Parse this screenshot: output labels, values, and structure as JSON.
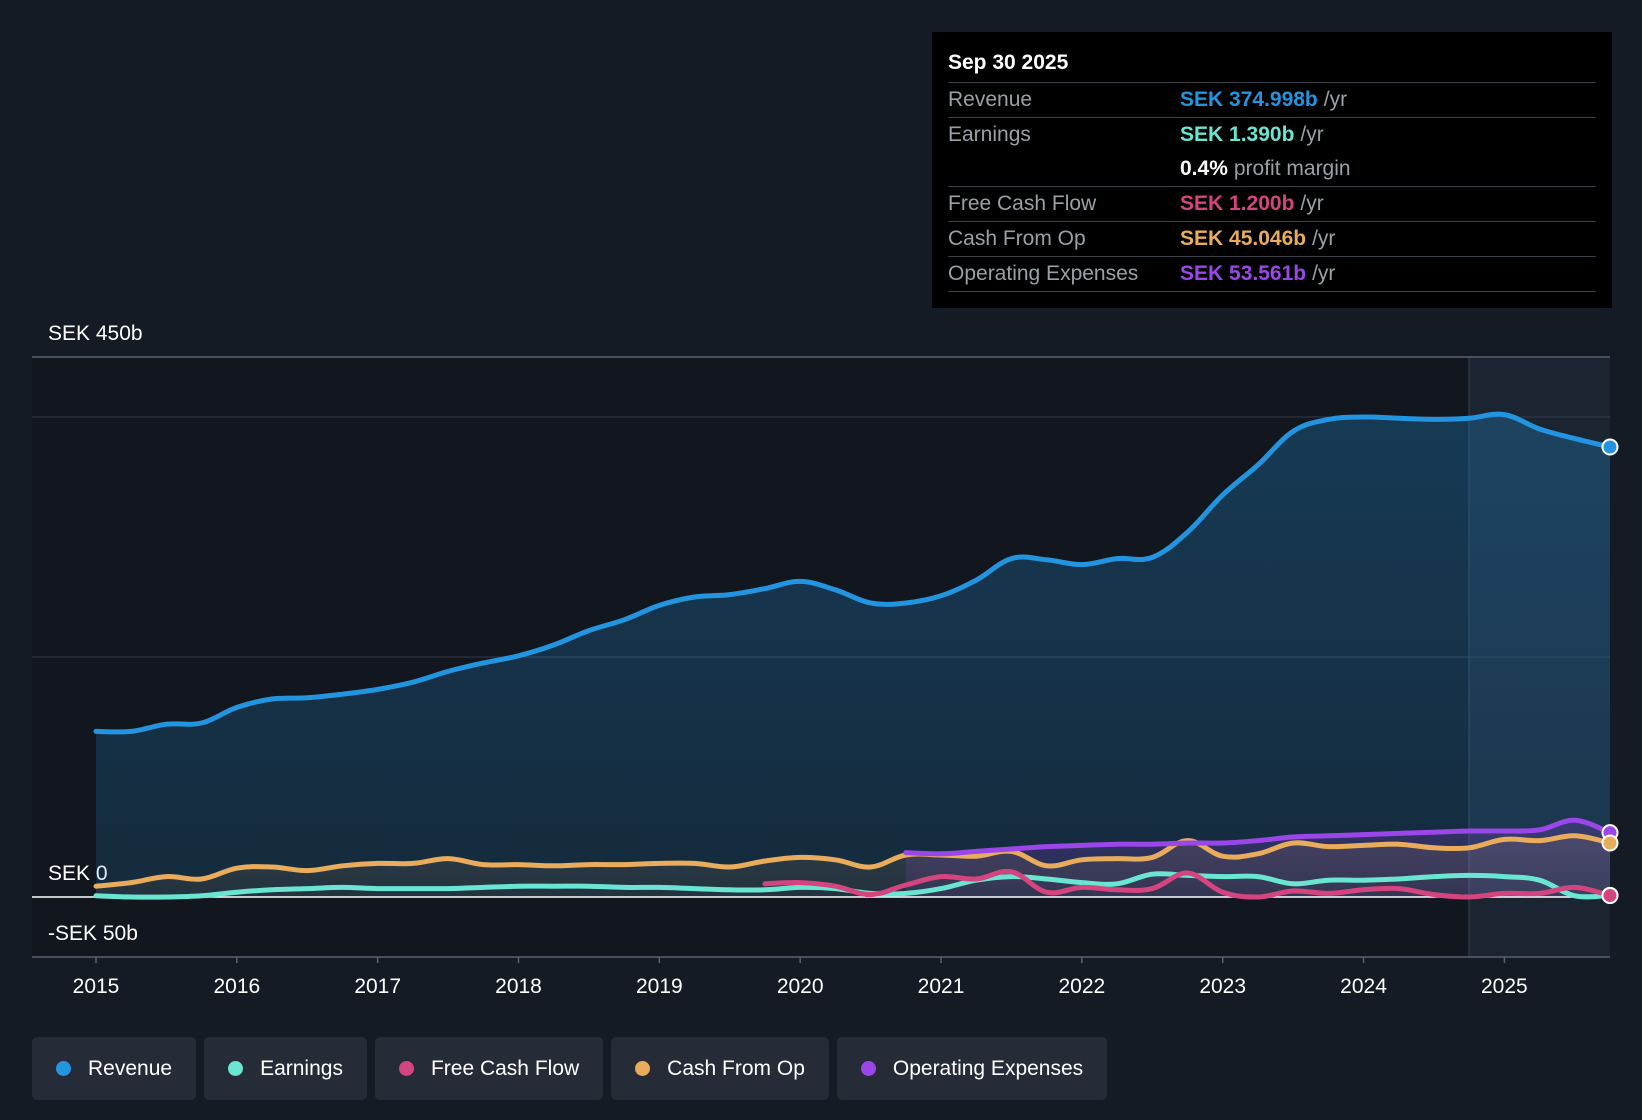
{
  "tooltip": {
    "date": "Sep 30 2025",
    "rows": [
      {
        "label": "Revenue",
        "value": "SEK 374.998b",
        "unit": "/yr",
        "color": "#2394df"
      },
      {
        "label": "Earnings",
        "value": "SEK 1.390b",
        "unit": "/yr",
        "color": "#6ae5d2"
      },
      {
        "label": "",
        "value": "0.4%",
        "unit": "profit margin",
        "color": "#ffffff"
      },
      {
        "label": "Free Cash Flow",
        "value": "SEK 1.200b",
        "unit": "/yr",
        "color": "#d4457f"
      },
      {
        "label": "Cash From Op",
        "value": "SEK 45.046b",
        "unit": "/yr",
        "color": "#e8ac5c"
      },
      {
        "label": "Operating Expenses",
        "value": "SEK 53.561b",
        "unit": "/yr",
        "color": "#9b46e8"
      }
    ]
  },
  "legend": [
    {
      "label": "Revenue",
      "color": "#2394df"
    },
    {
      "label": "Earnings",
      "color": "#6ae5d2"
    },
    {
      "label": "Free Cash Flow",
      "color": "#d4457f"
    },
    {
      "label": "Cash From Op",
      "color": "#e8ac5c"
    },
    {
      "label": "Operating Expenses",
      "color": "#9b46e8"
    }
  ],
  "chart_data": {
    "type": "area",
    "title": "",
    "xlabel": "",
    "ylabel": "",
    "y_top_label": "SEK 450b",
    "y_zero_label": "SEK 0",
    "y_bottom_label": "-SEK 50b",
    "ylim": [
      -50,
      450
    ],
    "xlim": [
      2015,
      2025.75
    ],
    "x_ticks": [
      "2015",
      "2016",
      "2017",
      "2018",
      "2019",
      "2020",
      "2021",
      "2022",
      "2023",
      "2024",
      "2025"
    ],
    "highlight_from": 2024.75,
    "series": [
      {
        "name": "Revenue",
        "color": "#2394df",
        "fill": true,
        "points": [
          [
            2015,
            138
          ],
          [
            2015.25,
            138
          ],
          [
            2015.5,
            144
          ],
          [
            2015.75,
            145
          ],
          [
            2016,
            158
          ],
          [
            2016.25,
            165
          ],
          [
            2016.5,
            166
          ],
          [
            2016.75,
            169
          ],
          [
            2017,
            173
          ],
          [
            2017.25,
            179
          ],
          [
            2017.5,
            188
          ],
          [
            2017.75,
            195
          ],
          [
            2018,
            201
          ],
          [
            2018.25,
            210
          ],
          [
            2018.5,
            222
          ],
          [
            2018.75,
            231
          ],
          [
            2019,
            243
          ],
          [
            2019.25,
            250
          ],
          [
            2019.5,
            252
          ],
          [
            2019.75,
            257
          ],
          [
            2020,
            263
          ],
          [
            2020.25,
            256
          ],
          [
            2020.5,
            245
          ],
          [
            2020.75,
            245
          ],
          [
            2021,
            251
          ],
          [
            2021.25,
            264
          ],
          [
            2021.5,
            282
          ],
          [
            2021.75,
            281
          ],
          [
            2022,
            277
          ],
          [
            2022.25,
            282
          ],
          [
            2022.5,
            283
          ],
          [
            2022.75,
            304
          ],
          [
            2023,
            335
          ],
          [
            2023.25,
            360
          ],
          [
            2023.5,
            388
          ],
          [
            2023.75,
            398
          ],
          [
            2024,
            400
          ],
          [
            2024.25,
            399
          ],
          [
            2024.5,
            398
          ],
          [
            2024.75,
            399
          ],
          [
            2025,
            402
          ],
          [
            2025.25,
            390
          ],
          [
            2025.5,
            382
          ],
          [
            2025.75,
            375
          ]
        ]
      },
      {
        "name": "Cash From Op",
        "color": "#e8ac5c",
        "fill": false,
        "points": [
          [
            2015,
            9
          ],
          [
            2015.25,
            12
          ],
          [
            2015.5,
            17
          ],
          [
            2015.75,
            15
          ],
          [
            2016,
            24
          ],
          [
            2016.25,
            25
          ],
          [
            2016.5,
            22
          ],
          [
            2016.75,
            26
          ],
          [
            2017,
            28
          ],
          [
            2017.25,
            28
          ],
          [
            2017.5,
            32
          ],
          [
            2017.75,
            27
          ],
          [
            2018,
            27
          ],
          [
            2018.25,
            26
          ],
          [
            2018.5,
            27
          ],
          [
            2018.75,
            27
          ],
          [
            2019,
            28
          ],
          [
            2019.25,
            28
          ],
          [
            2019.5,
            25
          ],
          [
            2019.75,
            30
          ],
          [
            2020,
            33
          ],
          [
            2020.25,
            31
          ],
          [
            2020.5,
            25
          ],
          [
            2020.75,
            35
          ],
          [
            2021,
            35
          ],
          [
            2021.25,
            34
          ],
          [
            2021.5,
            38
          ],
          [
            2021.75,
            26
          ],
          [
            2022,
            31
          ],
          [
            2022.25,
            32
          ],
          [
            2022.5,
            33
          ],
          [
            2022.75,
            47
          ],
          [
            2023,
            34
          ],
          [
            2023.25,
            36
          ],
          [
            2023.5,
            45
          ],
          [
            2023.75,
            42
          ],
          [
            2024,
            43
          ],
          [
            2024.25,
            44
          ],
          [
            2024.5,
            41
          ],
          [
            2024.75,
            41
          ],
          [
            2025,
            48
          ],
          [
            2025.25,
            47
          ],
          [
            2025.5,
            51
          ],
          [
            2025.75,
            45
          ]
        ]
      },
      {
        "name": "Earnings",
        "color": "#6ae5d2",
        "fill": false,
        "points": [
          [
            2015,
            1
          ],
          [
            2015.25,
            0
          ],
          [
            2015.5,
            0
          ],
          [
            2015.75,
            1
          ],
          [
            2016,
            4
          ],
          [
            2016.25,
            6
          ],
          [
            2016.5,
            7
          ],
          [
            2016.75,
            8
          ],
          [
            2017,
            7
          ],
          [
            2017.25,
            7
          ],
          [
            2017.5,
            7
          ],
          [
            2017.75,
            8
          ],
          [
            2018,
            9
          ],
          [
            2018.25,
            9
          ],
          [
            2018.5,
            9
          ],
          [
            2018.75,
            8
          ],
          [
            2019,
            8
          ],
          [
            2019.25,
            7
          ],
          [
            2019.5,
            6
          ],
          [
            2019.75,
            6
          ],
          [
            2020,
            8
          ],
          [
            2020.25,
            7
          ],
          [
            2020.5,
            3
          ],
          [
            2020.75,
            3
          ],
          [
            2021,
            7
          ],
          [
            2021.25,
            14
          ],
          [
            2021.5,
            17
          ],
          [
            2021.75,
            15
          ],
          [
            2022,
            12
          ],
          [
            2022.25,
            11
          ],
          [
            2022.5,
            19
          ],
          [
            2022.75,
            18
          ],
          [
            2023,
            17
          ],
          [
            2023.25,
            17
          ],
          [
            2023.5,
            11
          ],
          [
            2023.75,
            14
          ],
          [
            2024,
            14
          ],
          [
            2024.25,
            15
          ],
          [
            2024.5,
            17
          ],
          [
            2024.75,
            18
          ],
          [
            2025,
            17
          ],
          [
            2025.25,
            14
          ],
          [
            2025.5,
            1
          ],
          [
            2025.75,
            1.4
          ]
        ]
      },
      {
        "name": "Free Cash Flow",
        "color": "#d4457f",
        "fill": false,
        "points": [
          [
            2019.75,
            11
          ],
          [
            2020,
            12
          ],
          [
            2020.25,
            9
          ],
          [
            2020.5,
            2
          ],
          [
            2020.75,
            10
          ],
          [
            2021,
            17
          ],
          [
            2021.25,
            15
          ],
          [
            2021.5,
            21
          ],
          [
            2021.75,
            4
          ],
          [
            2022,
            8
          ],
          [
            2022.25,
            6
          ],
          [
            2022.5,
            7
          ],
          [
            2022.75,
            20
          ],
          [
            2023,
            4
          ],
          [
            2023.25,
            0
          ],
          [
            2023.5,
            5
          ],
          [
            2023.75,
            3
          ],
          [
            2024,
            6
          ],
          [
            2024.25,
            7
          ],
          [
            2024.5,
            2
          ],
          [
            2024.75,
            0
          ],
          [
            2025,
            3
          ],
          [
            2025.25,
            3
          ],
          [
            2025.5,
            8
          ],
          [
            2025.75,
            1.2
          ]
        ]
      },
      {
        "name": "Operating Expenses",
        "color": "#9b46e8",
        "fill": false,
        "points": [
          [
            2020.75,
            37
          ],
          [
            2021,
            36
          ],
          [
            2021.25,
            38
          ],
          [
            2021.5,
            40
          ],
          [
            2021.75,
            42
          ],
          [
            2022,
            43
          ],
          [
            2022.25,
            44
          ],
          [
            2022.5,
            44
          ],
          [
            2022.75,
            45
          ],
          [
            2023,
            45
          ],
          [
            2023.25,
            47
          ],
          [
            2023.5,
            50
          ],
          [
            2023.75,
            51
          ],
          [
            2024,
            52
          ],
          [
            2024.25,
            53
          ],
          [
            2024.5,
            54
          ],
          [
            2024.75,
            55
          ],
          [
            2025,
            55
          ],
          [
            2025.25,
            56
          ],
          [
            2025.5,
            64
          ],
          [
            2025.75,
            53.6
          ]
        ]
      }
    ]
  }
}
